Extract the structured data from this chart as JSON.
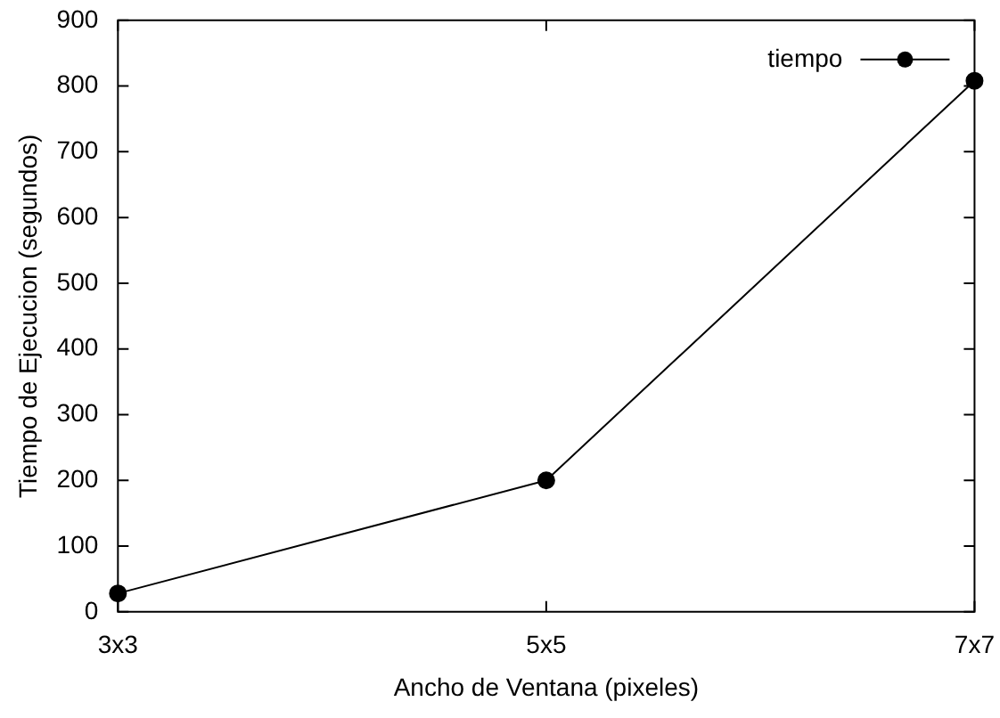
{
  "chart_data": {
    "type": "line",
    "xlabel": "Ancho de Ventana (pixeles)",
    "ylabel": "Tiempo de Ejecucion (segundos)",
    "categories": [
      "3x3",
      "5x5",
      "7x7"
    ],
    "series": [
      {
        "name": "tiempo",
        "color": "#000000",
        "values": [
          28,
          200,
          808
        ]
      }
    ],
    "ylim": [
      0,
      900
    ],
    "yticks": [
      0,
      100,
      200,
      300,
      400,
      500,
      600,
      700,
      800,
      900
    ],
    "grid": false,
    "legend": "top right",
    "marker": "circle",
    "line_style": "solid"
  }
}
